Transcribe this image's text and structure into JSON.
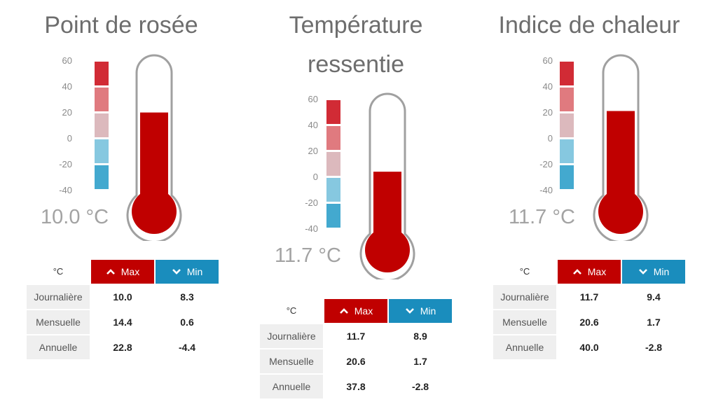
{
  "scale": {
    "ticks": [
      "60",
      "40",
      "20",
      "0",
      "-20",
      "-40"
    ],
    "colors": [
      "#d12b35",
      "#e07a7f",
      "#dcb9bd",
      "#86c8e0",
      "#43a9cf"
    ]
  },
  "colors": {
    "mercury": "#c00000",
    "max_header": "#c00000",
    "min_header": "#1a8dbd",
    "outline": "#a0a0a0"
  },
  "table_headers": {
    "unit": "°C",
    "max": "Max",
    "min": "Min"
  },
  "panels": [
    {
      "title": "Point de rosée",
      "reading": "10.0 °C",
      "fill_level": 0.67,
      "rows": [
        {
          "label": "Journalière",
          "max": "10.0",
          "min": "8.3"
        },
        {
          "label": "Mensuelle",
          "max": "14.4",
          "min": "0.6"
        },
        {
          "label": "Annuelle",
          "max": "22.8",
          "min": "-4.4"
        }
      ]
    },
    {
      "title": "Température ressentie",
      "reading": "11.7 °C",
      "fill_level": 0.53,
      "rows": [
        {
          "label": "Journalière",
          "max": "11.7",
          "min": "8.9"
        },
        {
          "label": "Mensuelle",
          "max": "20.6",
          "min": "1.7"
        },
        {
          "label": "Annuelle",
          "max": "37.8",
          "min": "-2.8"
        }
      ]
    },
    {
      "title": "Indice de chaleur",
      "reading": "11.7 °C",
      "fill_level": 0.68,
      "rows": [
        {
          "label": "Journalière",
          "max": "11.7",
          "min": "9.4"
        },
        {
          "label": "Mensuelle",
          "max": "20.6",
          "min": "1.7"
        },
        {
          "label": "Annuelle",
          "max": "40.0",
          "min": "-2.8"
        }
      ]
    }
  ]
}
